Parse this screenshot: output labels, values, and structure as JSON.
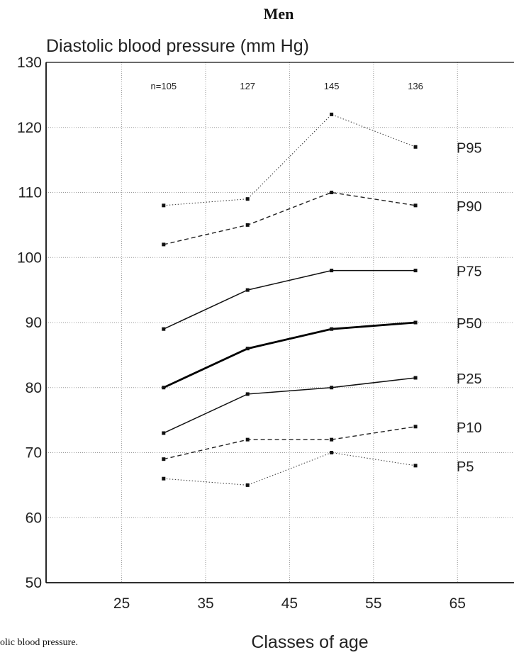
{
  "caption": "olic blood pressure.",
  "chart_data": {
    "type": "line",
    "title": "Men",
    "ylabel": "Diastolic blood pressure (mm Hg)",
    "xlabel": "Classes of age",
    "xlim": [
      16,
      73
    ],
    "ylim": [
      50,
      130
    ],
    "xticks": [
      25,
      35,
      45,
      55,
      65
    ],
    "yticks": [
      50,
      60,
      70,
      80,
      90,
      100,
      110,
      120,
      130
    ],
    "grid": true,
    "x": [
      30,
      40,
      50,
      60
    ],
    "sample_sizes": [
      "n=105",
      "127",
      "145",
      "136"
    ],
    "series": [
      {
        "name": "P95",
        "values": [
          108,
          109,
          122,
          117
        ],
        "style": "dotted",
        "color": "#444444"
      },
      {
        "name": "P90",
        "values": [
          102,
          105,
          110,
          108
        ],
        "style": "dashed",
        "color": "#222222"
      },
      {
        "name": "P75",
        "values": [
          89,
          95,
          98,
          98
        ],
        "style": "solid",
        "color": "#111111"
      },
      {
        "name": "P50",
        "values": [
          80,
          86,
          89,
          90
        ],
        "style": "bold",
        "color": "#000000"
      },
      {
        "name": "P25",
        "values": [
          73,
          79,
          80,
          81.5
        ],
        "style": "solid",
        "color": "#111111"
      },
      {
        "name": "P10",
        "values": [
          69,
          72,
          72,
          74
        ],
        "style": "dashed",
        "color": "#222222"
      },
      {
        "name": "P5",
        "values": [
          66,
          65,
          70,
          68
        ],
        "style": "dotted",
        "color": "#444444"
      }
    ]
  }
}
